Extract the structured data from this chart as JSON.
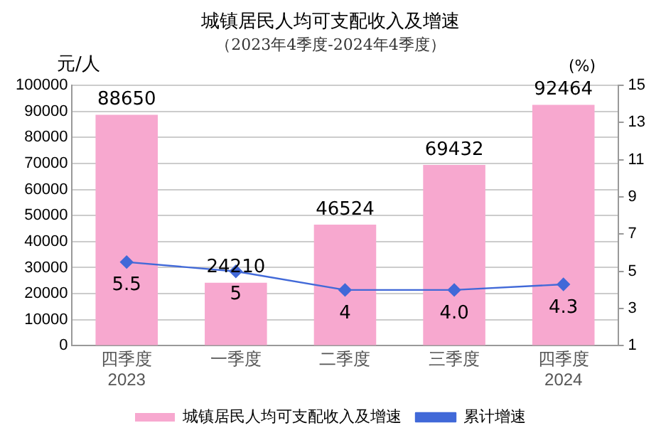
{
  "chart_data": {
    "type": "bar",
    "title": "城镇居民人均可支配收入及增速",
    "subtitle": "（2023年4季度-2024年4季度）",
    "ylabel": "元/人",
    "y2label": "(%)",
    "categories": [
      "四季度\n2023",
      "一季度",
      "二季度",
      "三季度",
      "四季度\n2024"
    ],
    "series": [
      {
        "name": "城镇居民人均可支配收入及增速",
        "color": "#f7a8cf",
        "values": [
          88650,
          24210,
          46524,
          69432,
          92464
        ],
        "value_labels": [
          "88650",
          "24210",
          "46524",
          "69432",
          "92464"
        ]
      },
      {
        "name": "累计增速",
        "type": "line",
        "axis": "y2",
        "color": "#4169d8",
        "values": [
          5.5,
          5,
          4,
          4.0,
          4.3
        ],
        "value_labels": [
          "5.5",
          "5",
          "4",
          "4.0",
          "4.3"
        ]
      }
    ],
    "ylim": [
      0,
      100000
    ],
    "yticks": [
      0,
      10000,
      20000,
      30000,
      40000,
      50000,
      60000,
      70000,
      80000,
      90000,
      100000
    ],
    "y2lim": [
      1,
      15
    ],
    "y2ticks": [
      1,
      3,
      5,
      7,
      9,
      11,
      13,
      15
    ],
    "grid": "y",
    "legend": "bottom",
    "marker": "diamond",
    "line_style": "solid"
  }
}
